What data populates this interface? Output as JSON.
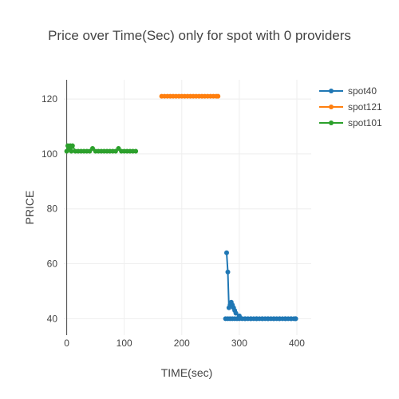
{
  "chart_data": {
    "type": "line",
    "title": "Price over Time(Sec) only for spot with 0 providers",
    "xlabel": "TIME(sec)",
    "ylabel": "PRICE",
    "xlim": [
      -5,
      425
    ],
    "ylim": [
      34,
      127
    ],
    "xticks": [
      0,
      100,
      200,
      300,
      400
    ],
    "yticks": [
      40,
      60,
      80,
      100,
      120
    ],
    "grid": true,
    "legend_position": "top-right",
    "series": [
      {
        "name": "spot40",
        "color": "#1f77b4",
        "x": [
          278,
          280,
          282,
          284,
          286,
          288,
          290,
          292,
          294,
          300,
          310,
          320,
          330,
          340,
          350,
          360,
          370,
          380,
          390,
          398,
          276,
          280,
          284,
          288,
          292,
          296,
          300,
          305,
          310,
          315,
          320,
          325,
          330,
          335,
          340,
          345,
          350,
          355,
          360,
          365,
          370,
          375,
          380,
          385,
          390,
          395,
          398
        ],
        "y": [
          64,
          57,
          44,
          45,
          46,
          45,
          44,
          43,
          42,
          41,
          40,
          40,
          40,
          40,
          40,
          40,
          40,
          40,
          40,
          40,
          40,
          40,
          40,
          40,
          40,
          40,
          40,
          40,
          40,
          40,
          40,
          40,
          40,
          40,
          40,
          40,
          40,
          40,
          40,
          40,
          40,
          40,
          40,
          40,
          40,
          40,
          40
        ]
      },
      {
        "name": "spot121",
        "color": "#ff7f0e",
        "x": [
          165,
          170,
          175,
          180,
          185,
          190,
          195,
          200,
          205,
          210,
          215,
          220,
          225,
          230,
          235,
          240,
          245,
          250,
          255,
          260,
          263
        ],
        "y": [
          121,
          121,
          121,
          121,
          121,
          121,
          121,
          121,
          121,
          121,
          121,
          121,
          121,
          121,
          121,
          121,
          121,
          121,
          121,
          121,
          121
        ]
      },
      {
        "name": "spot101",
        "color": "#2ca02c",
        "x": [
          0,
          2,
          4,
          6,
          8,
          10,
          15,
          20,
          25,
          30,
          35,
          40,
          45,
          50,
          55,
          60,
          65,
          70,
          75,
          80,
          85,
          90,
          95,
          100,
          105,
          110,
          115,
          120
        ],
        "y": [
          101,
          103,
          102,
          103,
          101,
          103,
          101,
          101,
          101,
          101,
          101,
          101,
          102,
          101,
          101,
          101,
          101,
          101,
          101,
          101,
          101,
          102,
          101,
          101,
          101,
          101,
          101,
          101
        ]
      }
    ]
  }
}
